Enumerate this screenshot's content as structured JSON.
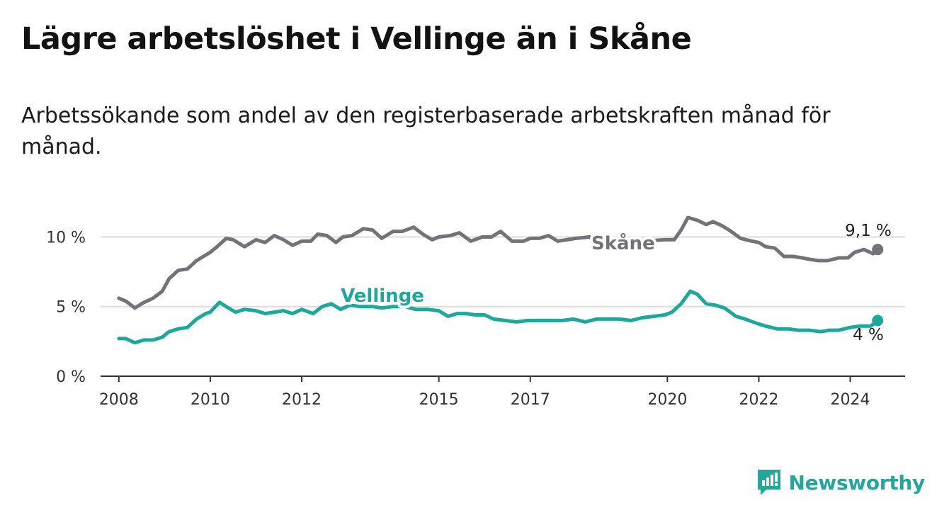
{
  "title": "Lägre arbetslöshet i Vellinge än i Skåne",
  "subtitle": "Arbetssökande som andel av den registerbaserade arbetskraften månad för månad.",
  "logo_text": "Newsworthy",
  "colors": {
    "skane": "#747279",
    "vellinge": "#1ea89c",
    "grid": "#dcdcdc",
    "axis": "#333333"
  },
  "chart_data": {
    "type": "line",
    "title": "Lägre arbetslöshet i Vellinge än i Skåne",
    "ylim": [
      0,
      11.5
    ],
    "xlim": [
      2007.6,
      2025.2
    ],
    "y_ticks": [
      0,
      5,
      10
    ],
    "y_tick_labels": [
      "0 %",
      "5 %",
      "10 %"
    ],
    "x_ticks": [
      2008,
      2010,
      2012,
      2015,
      2017,
      2020,
      2022,
      2024
    ],
    "x_tick_labels": [
      "2008",
      "2010",
      "2012",
      "2015",
      "2017",
      "2020",
      "2022",
      "2024"
    ],
    "series": [
      {
        "name": "Skåne",
        "end_label": "9,1 %",
        "x": [
          2008.0,
          2008.15,
          2008.35,
          2008.55,
          2008.75,
          2008.95,
          2009.1,
          2009.3,
          2009.5,
          2009.7,
          2009.9,
          2010.0,
          2010.15,
          2010.35,
          2010.5,
          2010.75,
          2011.0,
          2011.2,
          2011.4,
          2011.6,
          2011.8,
          2012.0,
          2012.2,
          2012.35,
          2012.55,
          2012.75,
          2012.9,
          2013.1,
          2013.35,
          2013.55,
          2013.75,
          2014.0,
          2014.2,
          2014.45,
          2014.65,
          2014.85,
          2015.0,
          2015.25,
          2015.45,
          2015.7,
          2015.95,
          2016.15,
          2016.35,
          2016.6,
          2016.85,
          2017.0,
          2017.2,
          2017.4,
          2017.6,
          2017.8,
          2018.0,
          2018.3,
          2018.45,
          2019.95,
          2020.15,
          2020.3,
          2020.45,
          2020.65,
          2020.85,
          2021.0,
          2021.2,
          2021.35,
          2021.6,
          2021.85,
          2022.0,
          2022.15,
          2022.35,
          2022.55,
          2022.75,
          2022.95,
          2023.1,
          2023.3,
          2023.5,
          2023.75,
          2023.95,
          2024.1,
          2024.3,
          2024.5,
          2024.6
        ],
        "values": [
          5.6,
          5.4,
          4.9,
          5.3,
          5.6,
          6.1,
          7.0,
          7.6,
          7.7,
          8.3,
          8.7,
          8.9,
          9.3,
          9.9,
          9.8,
          9.3,
          9.8,
          9.6,
          10.1,
          9.8,
          9.4,
          9.7,
          9.7,
          10.2,
          10.1,
          9.6,
          10.0,
          10.1,
          10.6,
          10.5,
          9.9,
          10.4,
          10.4,
          10.7,
          10.2,
          9.8,
          10.0,
          10.1,
          10.3,
          9.7,
          10.0,
          10.0,
          10.4,
          9.7,
          9.7,
          9.9,
          9.9,
          10.1,
          9.7,
          9.8,
          9.9,
          10.0,
          9.5,
          9.8,
          9.8,
          10.5,
          11.4,
          11.2,
          10.9,
          11.1,
          10.8,
          10.5,
          9.9,
          9.7,
          9.6,
          9.3,
          9.2,
          8.6,
          8.6,
          8.5,
          8.4,
          8.3,
          8.3,
          8.5,
          8.5,
          8.9,
          9.1,
          8.8,
          9.1
        ]
      },
      {
        "name": "Vellinge",
        "end_label": "4 %",
        "x": [
          2008.0,
          2008.15,
          2008.35,
          2008.55,
          2008.75,
          2008.95,
          2009.1,
          2009.3,
          2009.5,
          2009.7,
          2009.9,
          2010.0,
          2010.2,
          2010.4,
          2010.55,
          2010.75,
          2011.0,
          2011.2,
          2011.4,
          2011.6,
          2011.8,
          2012.0,
          2012.25,
          2012.45,
          2012.65,
          2012.85,
          2013.05,
          2013.3,
          2013.55,
          2013.75,
          2014.0,
          2014.25,
          2014.5,
          2014.75,
          2015.0,
          2015.2,
          2015.4,
          2015.6,
          2015.8,
          2016.0,
          2016.2,
          2016.45,
          2016.7,
          2016.95,
          2017.2,
          2017.45,
          2017.7,
          2017.95,
          2018.2,
          2018.45,
          2018.7,
          2018.95,
          2019.2,
          2019.45,
          2019.7,
          2019.95,
          2020.1,
          2020.3,
          2020.5,
          2020.65,
          2020.85,
          2021.05,
          2021.25,
          2021.5,
          2021.7,
          2021.95,
          2022.15,
          2022.4,
          2022.65,
          2022.85,
          2023.1,
          2023.35,
          2023.55,
          2023.75,
          2024.0,
          2024.2,
          2024.45,
          2024.6
        ],
        "values": [
          2.7,
          2.7,
          2.4,
          2.6,
          2.6,
          2.8,
          3.2,
          3.4,
          3.5,
          4.1,
          4.5,
          4.6,
          5.3,
          4.9,
          4.6,
          4.8,
          4.7,
          4.5,
          4.6,
          4.7,
          4.5,
          4.8,
          4.5,
          5.0,
          5.2,
          4.8,
          5.1,
          5.0,
          5.0,
          4.9,
          5.0,
          5.0,
          4.8,
          4.8,
          4.7,
          4.3,
          4.5,
          4.5,
          4.4,
          4.4,
          4.1,
          4.0,
          3.9,
          4.0,
          4.0,
          4.0,
          4.0,
          4.1,
          3.9,
          4.1,
          4.1,
          4.1,
          4.0,
          4.2,
          4.3,
          4.4,
          4.6,
          5.2,
          6.1,
          5.9,
          5.2,
          5.1,
          4.9,
          4.3,
          4.1,
          3.8,
          3.6,
          3.4,
          3.4,
          3.3,
          3.3,
          3.2,
          3.3,
          3.3,
          3.5,
          3.6,
          3.6,
          4.0
        ]
      }
    ]
  }
}
